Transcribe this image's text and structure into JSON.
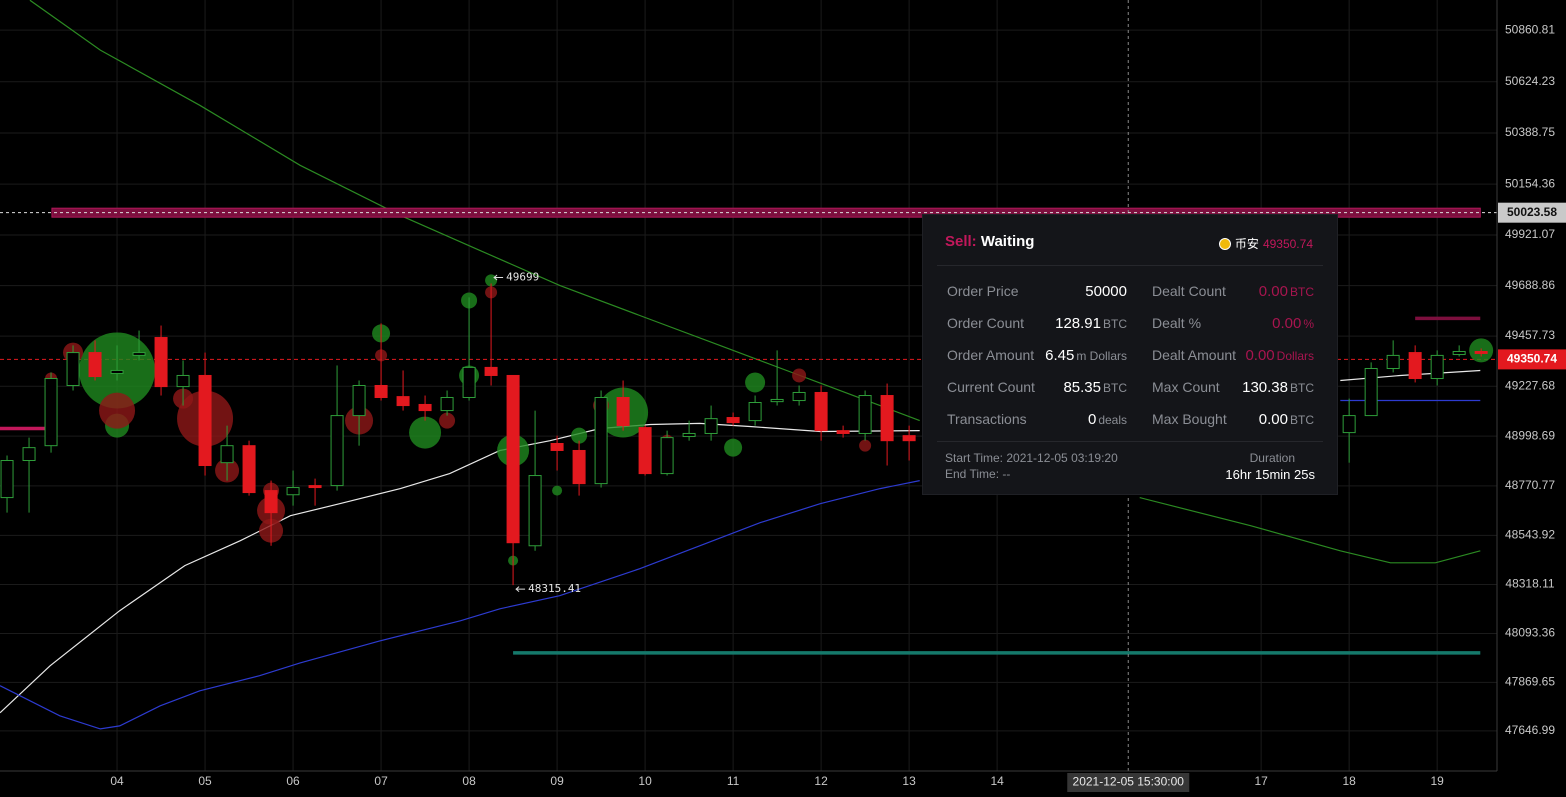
{
  "chart_data": {
    "type": "candlestick",
    "xlim": [
      2.67,
      19.68
    ],
    "ylim": [
      47463,
      50999
    ],
    "xticks": [
      {
        "value": 4,
        "label": "04"
      },
      {
        "value": 5,
        "label": "05"
      },
      {
        "value": 6,
        "label": "06"
      },
      {
        "value": 7,
        "label": "07"
      },
      {
        "value": 8,
        "label": "08"
      },
      {
        "value": 9,
        "label": "09"
      },
      {
        "value": 10,
        "label": "10"
      },
      {
        "value": 11,
        "label": "11"
      },
      {
        "value": 12,
        "label": "12"
      },
      {
        "value": 13,
        "label": "13"
      },
      {
        "value": 14,
        "label": "14"
      },
      {
        "value": 17,
        "label": "17"
      },
      {
        "value": 18,
        "label": "18"
      },
      {
        "value": 19,
        "label": "19"
      }
    ],
    "yticks": [
      50860.81,
      50624.23,
      50388.75,
      50154.36,
      49921.07,
      49688.86,
      49457.73,
      49227.68,
      48998.69,
      48770.77,
      48543.92,
      48318.11,
      48093.36,
      47869.65,
      47646.99
    ],
    "grid": true,
    "up_color": "#2f9e3a",
    "down_color": "#e3191f",
    "candles": {
      "x": [
        2.75,
        3,
        3.25,
        3.5,
        3.75,
        4,
        4.25,
        4.5,
        4.75,
        5,
        5.25,
        5.5,
        5.75,
        6,
        6.25,
        6.5,
        6.75,
        7,
        7.25,
        7.5,
        7.75,
        8,
        8.25,
        8.5,
        8.75,
        9,
        9.25,
        9.5,
        9.75,
        10,
        10.25,
        10.5,
        10.75,
        11,
        11.25,
        11.5,
        11.75,
        12,
        12.25,
        12.5,
        12.75,
        13,
        18,
        18.25,
        18.5,
        18.75,
        19,
        19.25,
        19.5
      ],
      "open": [
        48717,
        48887,
        48955,
        49231,
        49382,
        49286,
        49369,
        49451,
        49226,
        49277,
        48877,
        48955,
        48749,
        48730,
        48772,
        48772,
        49093,
        49231,
        49180,
        49144,
        49116,
        49176,
        49314,
        49277,
        48496,
        48965,
        48933,
        48781,
        49176,
        49038,
        48827,
        48997,
        49011,
        49084,
        49070,
        49157,
        49162,
        49199,
        49024,
        49011,
        49185,
        49001,
        49015,
        49093,
        49309,
        49382,
        49263,
        49373,
        49387
      ],
      "high": [
        48910,
        48992,
        49291,
        49415,
        49438,
        49415,
        49483,
        49506,
        49346,
        49382,
        49047,
        48978,
        48795,
        48841,
        48804,
        49323,
        49254,
        49516,
        49300,
        49185,
        49208,
        49635,
        49699,
        49277,
        49116,
        49001,
        48978,
        49208,
        49254,
        49047,
        49024,
        49070,
        49139,
        49107,
        49185,
        49392,
        49231,
        49231,
        49047,
        49208,
        49240,
        49047,
        49171,
        49337,
        49438,
        49415,
        49392,
        49415,
        49401
      ],
      "low": [
        48648,
        48648,
        48923,
        49208,
        49254,
        49254,
        49346,
        49185,
        49139,
        48818,
        48795,
        48726,
        48496,
        48680,
        48680,
        48749,
        48955,
        49162,
        49116,
        49070,
        49093,
        49162,
        49231,
        48315.41,
        48473,
        48841,
        48726,
        48763,
        49024,
        48818,
        48818,
        48978,
        48978,
        49047,
        49047,
        49139,
        49139,
        48978,
        48992,
        48978,
        48864,
        48887,
        48877,
        49093,
        49291,
        49245,
        49231,
        49364,
        49364
      ],
      "close": [
        48887,
        48946,
        49263,
        49382,
        49272,
        49300,
        49382,
        49226,
        49277,
        48864,
        48955,
        48740,
        48648,
        48763,
        48763,
        49093,
        49231,
        49176,
        49139,
        49116,
        49176,
        49314,
        49277,
        48510,
        48818,
        48933,
        48781,
        49176,
        49047,
        48827,
        48992,
        49011,
        49079,
        49061,
        49153,
        49167,
        49199,
        49024,
        49011,
        49185,
        48978,
        48978,
        49093,
        49309,
        49369,
        49263,
        49369,
        49387,
        49378
      ]
    },
    "high_label_index": 22,
    "low_label_index": 23,
    "series": [
      {
        "color": "#e8e8e8",
        "x": [
          2.67,
          3.24,
          4.03,
          4.77,
          5.4,
          5.97,
          6.53,
          7.22,
          7.78,
          8.35,
          8.92,
          9.49,
          10.06,
          10.62,
          11.19,
          11.99,
          13.12,
          15.5,
          17.9,
          18.58,
          19.49
        ],
        "values": [
          47730,
          47946,
          48198,
          48405,
          48519,
          48634,
          48689,
          48758,
          48827,
          48933,
          48978,
          49034,
          49052,
          49057,
          49043,
          49020,
          49024,
          null,
          49254,
          49277,
          49300
        ]
      },
      {
        "color": "#2d3bd0",
        "x": [
          2.67,
          3.35,
          3.81,
          4.03,
          4.49,
          4.94,
          5.62,
          6.08,
          6.99,
          7.9,
          8.35,
          9.03,
          9.94,
          10.62,
          11.31,
          11.99,
          12.67,
          13.12,
          15.5,
          17.9,
          19.49
        ],
        "values": [
          47854,
          47716,
          47656,
          47670,
          47762,
          47831,
          47900,
          47959,
          48060,
          48152,
          48207,
          48267,
          48391,
          48496,
          48602,
          48689,
          48758,
          48795,
          null,
          49162,
          49162
        ]
      },
      {
        "color": "#2b8a22",
        "x": [
          3.01,
          3.81,
          4.94,
          6.08,
          7.22,
          8.12,
          9.03,
          9.94,
          10.85,
          11.76,
          12.67,
          13.12,
          14.5,
          15.62,
          16.88,
          17.9,
          18.47,
          18.98,
          19.49
        ],
        "values": [
          50998,
          50769,
          50516,
          50241,
          50011,
          49851,
          49690,
          49552,
          49415,
          49277,
          49139,
          49070,
          null,
          48717,
          48588,
          48473,
          48418,
          48418,
          48473
        ]
      }
    ],
    "trades_buy": {
      "color": "#1f8a1f",
      "x": [
        4,
        4,
        7,
        7.5,
        8,
        8,
        8.5,
        8.5,
        9.25,
        9.75,
        11,
        11.25,
        19.5,
        8.25,
        9
      ],
      "values": [
        49300,
        49047,
        49470,
        49015,
        49621,
        49277,
        48933,
        48428,
        49001,
        49107,
        48946,
        49245,
        49392,
        49713,
        48749
      ],
      "size": [
        38,
        12,
        9,
        16,
        8,
        10,
        16,
        5,
        8,
        25,
        9,
        10,
        12,
        6,
        5
      ]
    },
    "trades_sell": {
      "color": "#8e1818",
      "x": [
        4,
        3.5,
        3.25,
        5,
        4.75,
        5.25,
        5.75,
        5.75,
        5.75,
        6.75,
        7,
        7.75,
        8.25,
        9.5,
        10.25,
        11.75,
        12.5
      ],
      "values": [
        49116,
        49382,
        49263,
        49079,
        49171,
        48841,
        48749,
        48657,
        48565,
        49070,
        49369,
        49070,
        49658,
        49139,
        48978,
        49277,
        48955
      ],
      "size": [
        18,
        10,
        6,
        28,
        10,
        12,
        8,
        14,
        12,
        14,
        6,
        8,
        6,
        8,
        6,
        7,
        6
      ]
    },
    "levels": [
      {
        "price": 50023.58,
        "from": 3.26,
        "to": 19.49,
        "color": "#7d0f3e",
        "style": "band"
      },
      {
        "price": 48005,
        "from": 8.5,
        "to": 19.49,
        "color": "#15796b",
        "style": "line"
      },
      {
        "price": 49034,
        "from": 2.67,
        "to": 3.24,
        "color": "#c2185b",
        "style": "line"
      },
      {
        "price": 49539,
        "from": 18.75,
        "to": 19.49,
        "color": "#7d0f3e",
        "style": "line"
      }
    ],
    "last_price": 49350.74,
    "last_price_color": "#e3191f",
    "crosshair": {
      "x": 15.49,
      "price": 50023.58,
      "label": "2021-12-05 15:30:00"
    }
  },
  "panel": {
    "side": "Sell:",
    "status": "Waiting",
    "exchange": "币安",
    "price": "49350.74",
    "left": [
      {
        "label": "Order Price",
        "value": "50000"
      },
      {
        "label": "Order Count",
        "value": "128.91",
        "unit": "BTC"
      },
      {
        "label": "Order Amount",
        "value": "6.45",
        "unit": "m Dollars"
      },
      {
        "label": "Current Count",
        "value": "85.35",
        "unit": "BTC"
      },
      {
        "label": "Transactions",
        "value": "0",
        "unit": "deals"
      }
    ],
    "right": [
      {
        "label": "Dealt Count",
        "value": "0.00",
        "unit": "BTC",
        "accent": true
      },
      {
        "label": "Dealt %",
        "value": "0.00",
        "unit": "%",
        "accent": true
      },
      {
        "label": "Dealt Amount",
        "value": "0.00",
        "unit": "Dollars",
        "accent": true
      },
      {
        "label": "Max Count",
        "value": "130.38",
        "unit": "BTC"
      },
      {
        "label": "Max Bought",
        "value": "0.00",
        "unit": "BTC"
      }
    ],
    "start": "Start Time: 2021-12-05 03:19:20",
    "end": "End Time: --",
    "duration_label": "Duration",
    "duration": "16hr 15min 25s"
  }
}
